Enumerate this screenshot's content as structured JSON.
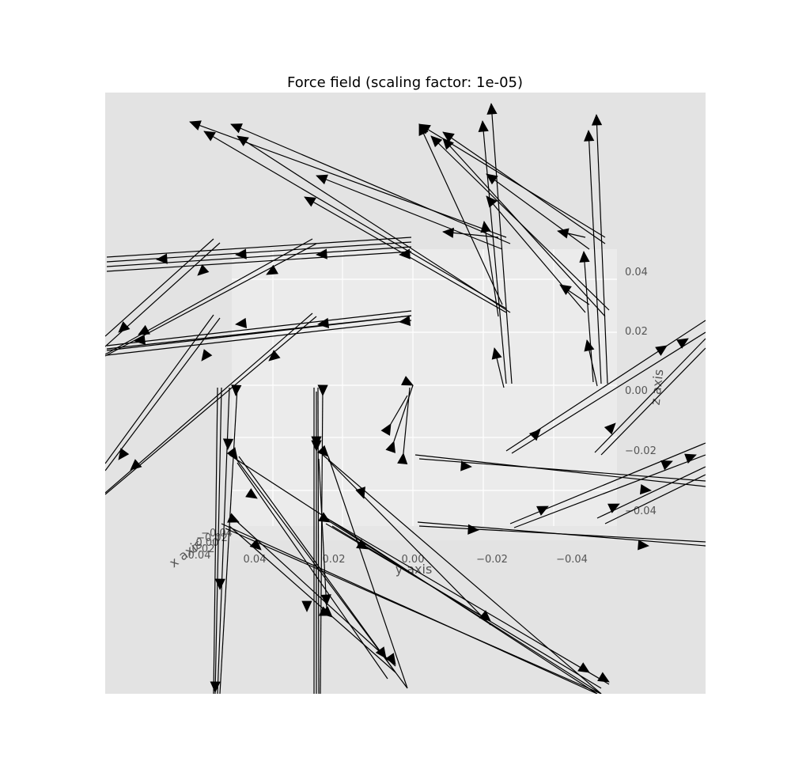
{
  "chart_data": {
    "type": "quiver3d",
    "title": "Force field (scaling factor: 1e-05)",
    "xlabel": "x axis",
    "ylabel": "y axis",
    "zlabel": "z axis",
    "y_ticks": [
      "0.04",
      "0.02",
      "0.00",
      "−0.02",
      "−0.04"
    ],
    "z_ticks": [
      "0.04",
      "0.02",
      "0.00",
      "−0.02",
      "−0.04"
    ],
    "x_ticks": [
      "0.04",
      "0.02",
      "0.00",
      "−0.02",
      "−0.04"
    ],
    "scaling_factor": "1e-05",
    "grid": true,
    "colors": {
      "background": "#e3e3e3",
      "pane": "#ebebeb",
      "grid": "#ffffff",
      "arrows": "#000000"
    }
  }
}
